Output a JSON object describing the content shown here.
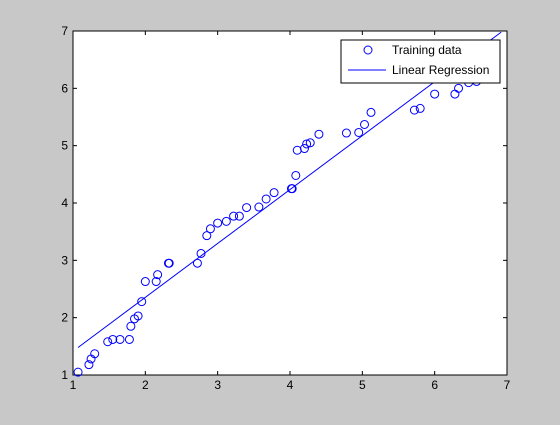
{
  "chart_data": {
    "type": "scatter",
    "xlim": [
      1,
      7
    ],
    "ylim": [
      1,
      7
    ],
    "xticks": [
      "1",
      "2",
      "3",
      "4",
      "5",
      "6",
      "7"
    ],
    "yticks": [
      "1",
      "2",
      "3",
      "4",
      "5",
      "6",
      "7"
    ],
    "grid": false,
    "legend_position": "top-right",
    "series": [
      {
        "name": "Training data",
        "kind": "markers",
        "marker": "circle-open",
        "color": "#0000ff",
        "x": [
          1.07,
          1.22,
          1.25,
          1.3,
          1.48,
          1.55,
          1.65,
          1.78,
          1.8,
          1.85,
          1.9,
          1.95,
          2.0,
          2.15,
          2.17,
          2.32,
          2.33,
          2.72,
          2.77,
          2.85,
          2.9,
          3.0,
          3.12,
          3.22,
          3.3,
          3.4,
          3.57,
          3.67,
          3.78,
          4.02,
          4.03,
          4.08,
          4.1,
          4.2,
          4.23,
          4.28,
          4.4,
          4.78,
          4.95,
          5.03,
          5.12,
          5.72,
          5.8,
          6.0,
          6.28,
          6.33,
          6.47,
          6.58
        ],
        "y": [
          1.05,
          1.18,
          1.28,
          1.37,
          1.58,
          1.62,
          1.62,
          1.62,
          1.85,
          1.98,
          2.03,
          2.28,
          2.63,
          2.63,
          2.75,
          2.95,
          2.95,
          2.95,
          3.12,
          3.43,
          3.55,
          3.65,
          3.68,
          3.77,
          3.77,
          3.92,
          3.93,
          4.07,
          4.18,
          4.25,
          4.25,
          4.48,
          4.92,
          4.95,
          5.03,
          5.05,
          5.2,
          5.22,
          5.23,
          5.37,
          5.58,
          5.62,
          5.65,
          5.9,
          5.9,
          6.0,
          6.1,
          6.12
        ]
      },
      {
        "name": "Linear Regression",
        "kind": "line",
        "color": "#0000ff",
        "x": [
          1.07,
          6.92
        ],
        "y": [
          1.48,
          6.98
        ]
      }
    ]
  },
  "legend": {
    "entries": [
      "Training data",
      "Linear Regression"
    ]
  }
}
